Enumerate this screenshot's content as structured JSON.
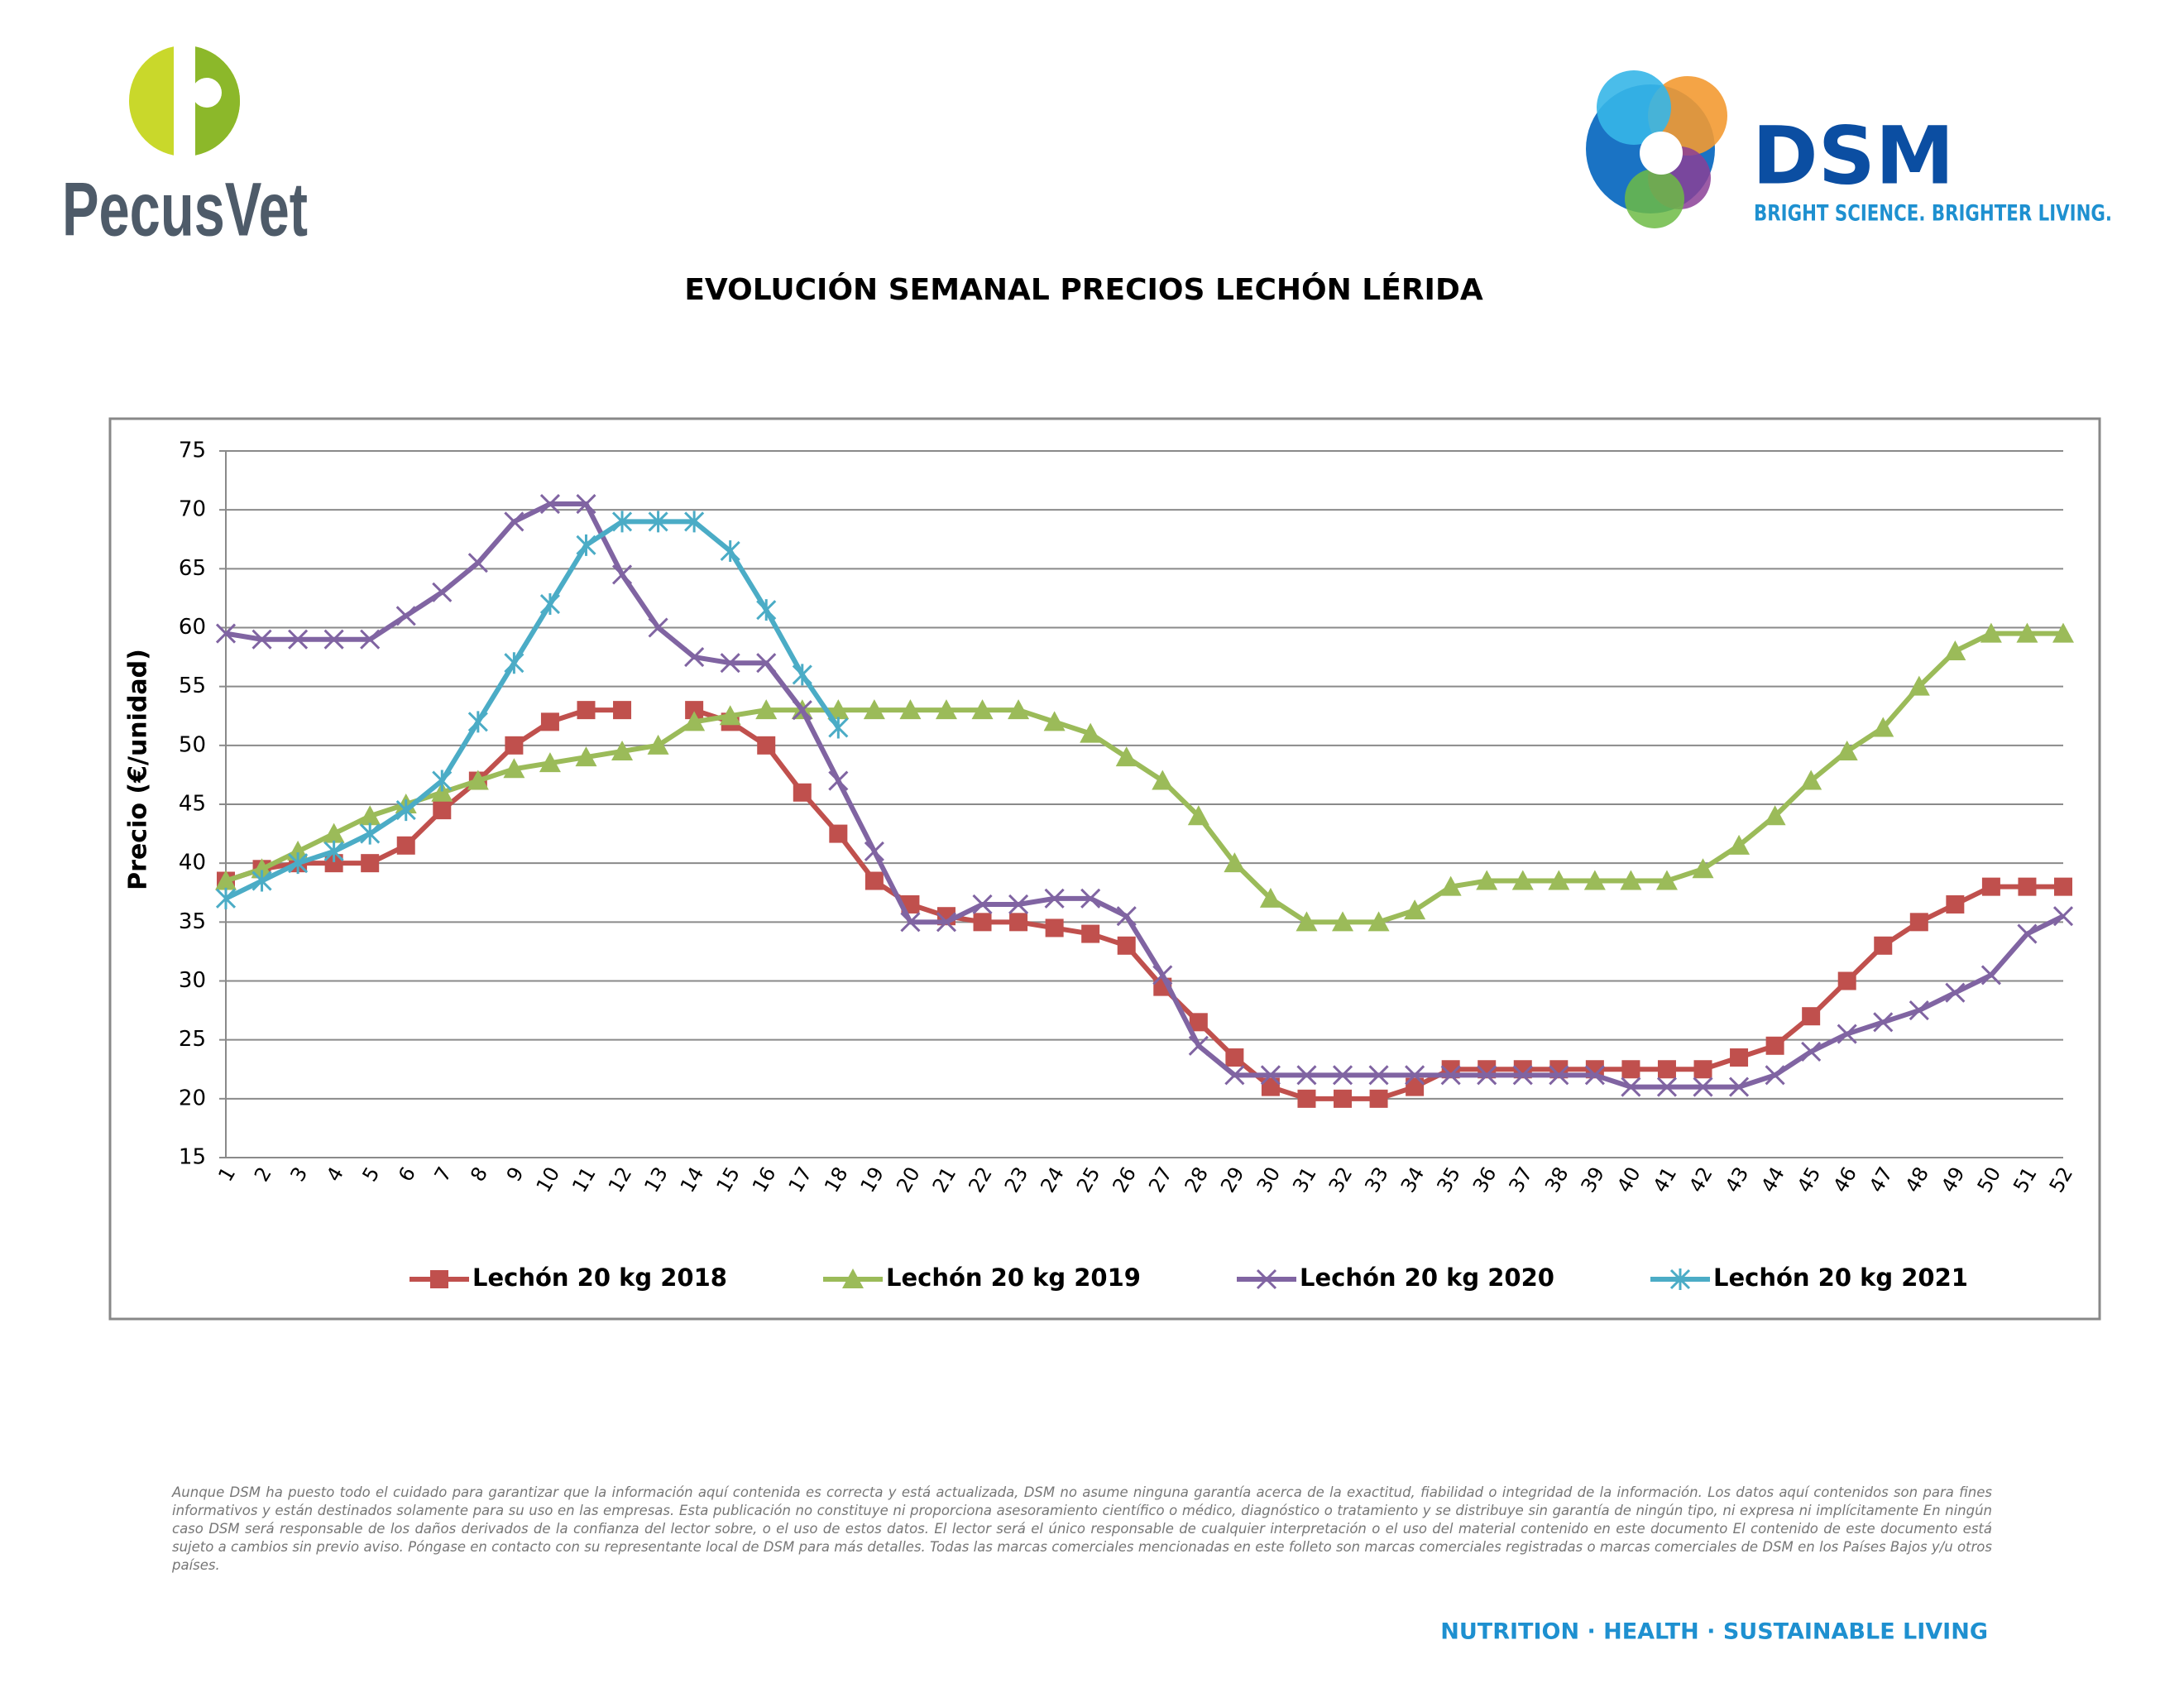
{
  "logos": {
    "left": "PecusVet",
    "right": "DSM",
    "right_tagline": "BRIGHT SCIENCE. BRIGHTER LIVING."
  },
  "chart_data": {
    "type": "line",
    "title": "EVOLUCIÓN SEMANAL PRECIOS LECHÓN LÉRIDA",
    "y_label": "Precio (€/unidad)",
    "categories": [
      "1",
      "2",
      "3",
      "4",
      "5",
      "6",
      "7",
      "8",
      "9",
      "10",
      "11",
      "12",
      "13",
      "14",
      "15",
      "16",
      "17",
      "18",
      "19",
      "20",
      "21",
      "22",
      "23",
      "24",
      "25",
      "26",
      "27",
      "28",
      "29",
      "30",
      "31",
      "32",
      "33",
      "34",
      "35",
      "36",
      "37",
      "38",
      "39",
      "40",
      "41",
      "42",
      "43",
      "44",
      "45",
      "46",
      "47",
      "48",
      "49",
      "50",
      "51",
      "52"
    ],
    "ylim": [
      15,
      75
    ],
    "yticks": [
      15,
      20,
      25,
      30,
      35,
      40,
      45,
      50,
      55,
      60,
      65,
      70,
      75
    ],
    "grid": true,
    "legend": "bottom",
    "series": [
      {
        "name": "Lechón 20 kg 2018",
        "color": "#c0504d",
        "marker": "square",
        "values": [
          38.5,
          39.5,
          40,
          40,
          40,
          41.5,
          44.5,
          47,
          50,
          52,
          53,
          53,
          null,
          53,
          52,
          50,
          46,
          42.5,
          38.5,
          36.5,
          35.5,
          35,
          35,
          34.5,
          34,
          33,
          29.5,
          26.5,
          23.5,
          21,
          20,
          20,
          20,
          21,
          22.5,
          22.5,
          22.5,
          22.5,
          22.5,
          22.5,
          22.5,
          22.5,
          23.5,
          24.5,
          27,
          30,
          33,
          35,
          36.5,
          38,
          38,
          38
        ]
      },
      {
        "name": "Lechón 20 kg 2019",
        "color": "#9bbb59",
        "marker": "triangle",
        "values": [
          38.5,
          39.5,
          41,
          42.5,
          44,
          45,
          46,
          47,
          48,
          48.5,
          49,
          49.5,
          50,
          52,
          52.5,
          53,
          53,
          53,
          53,
          53,
          53,
          53,
          53,
          52,
          51,
          49,
          47,
          44,
          40,
          37,
          35,
          35,
          35,
          36,
          38,
          38.5,
          38.5,
          38.5,
          38.5,
          38.5,
          38.5,
          39.5,
          41.5,
          44,
          47,
          49.5,
          51.5,
          55,
          58,
          59.5,
          59.5,
          59.5
        ]
      },
      {
        "name": "Lechón 20 kg 2020",
        "color": "#8064a2",
        "marker": "x",
        "values": [
          59.5,
          59,
          59,
          59,
          59,
          61,
          63,
          65.5,
          69,
          70.5,
          70.5,
          64.5,
          60,
          57.5,
          57,
          57,
          53,
          47,
          41,
          35,
          35,
          36.5,
          36.5,
          37,
          37,
          35.5,
          30.5,
          24.5,
          22,
          22,
          22,
          22,
          22,
          22,
          22,
          22,
          22,
          22,
          22,
          21,
          21,
          21,
          21,
          22,
          24,
          25.5,
          26.5,
          27.5,
          29,
          30.5,
          34,
          35.5
        ]
      },
      {
        "name": "Lechón 20 kg 2021",
        "color": "#4bacc6",
        "marker": "star",
        "values": [
          37,
          38.5,
          40,
          41,
          42.5,
          44.5,
          47,
          52,
          57,
          62,
          67,
          69,
          69,
          69,
          66.5,
          61.5,
          56,
          51.5,
          null,
          null,
          null,
          null,
          null,
          null,
          null,
          null,
          null,
          null,
          null,
          null,
          null,
          null,
          null,
          null,
          null,
          null,
          null,
          null,
          null,
          null,
          null,
          null,
          null,
          null,
          null,
          null,
          null,
          null,
          null,
          null,
          null,
          null
        ]
      }
    ]
  },
  "disclaimer": "Aunque DSM ha puesto todo el cuidado para garantizar que la información aquí contenida es correcta y está actualizada, DSM no asume ninguna garantía acerca de la exactitud, fiabilidad o integridad de la información. Los datos aquí contenidos son para fines informativos y están destinados solamente para su uso en las empresas. Esta publicación no constituye ni proporciona asesoramiento científico o médico, diagnóstico o tratamiento y se distribuye sin garantía de ningún tipo, ni expresa ni implícitamente En ningún caso DSM será responsable de los daños derivados de la confianza del lector sobre, o el uso de estos datos. El lector será el único responsable de cualquier interpretación o el uso del material contenido en este documento El contenido de este documento está sujeto a cambios sin previo aviso. Póngase en contacto con su representante local de DSM para más detalles. Todas las marcas comerciales mencionadas en este folleto son marcas comerciales registradas o marcas comerciales de DSM en los Países Bajos y/u otros países.",
  "footer": "NUTRITION · HEALTH · SUSTAINABLE LIVING"
}
